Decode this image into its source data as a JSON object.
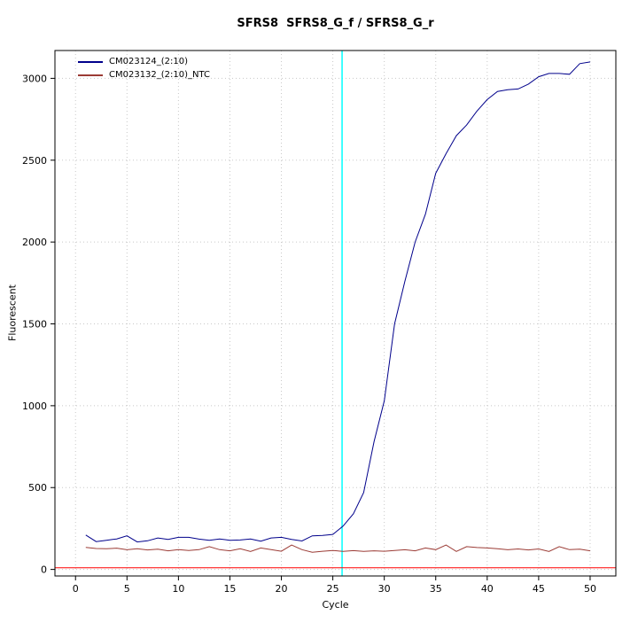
{
  "chart_data": {
    "type": "line",
    "title": "SFRS8  SFRS8_G_f / SFRS8_G_r",
    "xlabel": "Cycle",
    "ylabel": "Fluorescent",
    "xlim": [
      -2,
      52.5
    ],
    "ylim": [
      -40,
      3170
    ],
    "x_ticks": [
      0,
      5,
      10,
      15,
      20,
      25,
      30,
      35,
      40,
      45,
      50
    ],
    "y_ticks": [
      0,
      500,
      1000,
      1500,
      2000,
      2500,
      3000
    ],
    "grid": {
      "style": "dotted",
      "color": "#c8c8c8"
    },
    "legend_position": "top-left",
    "annotations": {
      "threshold_line": {
        "y": 10,
        "color": "#ff0000"
      },
      "ct_line": {
        "x": 25.9,
        "color": "#00ffff"
      }
    },
    "x": [
      1,
      2,
      3,
      4,
      5,
      6,
      7,
      8,
      9,
      10,
      11,
      12,
      13,
      14,
      15,
      16,
      17,
      18,
      19,
      20,
      21,
      22,
      23,
      24,
      25,
      26,
      27,
      28,
      29,
      30,
      31,
      32,
      33,
      34,
      35,
      36,
      37,
      38,
      39,
      40,
      41,
      42,
      43,
      44,
      45,
      46,
      47,
      48,
      49,
      50
    ],
    "series": [
      {
        "name": "CM023124_(2:10)",
        "color": "#00008b",
        "values": [
          210,
          170,
          178,
          186,
          205,
          168,
          175,
          192,
          183,
          196,
          196,
          185,
          178,
          186,
          178,
          180,
          186,
          173,
          192,
          196,
          183,
          174,
          205,
          208,
          214,
          265,
          340,
          470,
          780,
          1030,
          1500,
          1760,
          2000,
          2170,
          2420,
          2540,
          2650,
          2715,
          2800,
          2870,
          2920,
          2930,
          2935,
          2965,
          3010,
          3030,
          3030,
          3025,
          3090,
          3100
        ]
      },
      {
        "name": "CM023132_(2:10)_NTC",
        "color": "#9b3b35",
        "values": [
          135,
          128,
          126,
          130,
          120,
          126,
          119,
          124,
          114,
          121,
          116,
          121,
          139,
          121,
          114,
          126,
          110,
          131,
          121,
          111,
          149,
          121,
          105,
          111,
          116,
          110,
          115,
          110,
          114,
          111,
          116,
          120,
          114,
          131,
          121,
          149,
          110,
          139,
          134,
          131,
          126,
          120,
          125,
          119,
          125,
          110,
          139,
          121,
          124,
          114
        ]
      }
    ]
  }
}
